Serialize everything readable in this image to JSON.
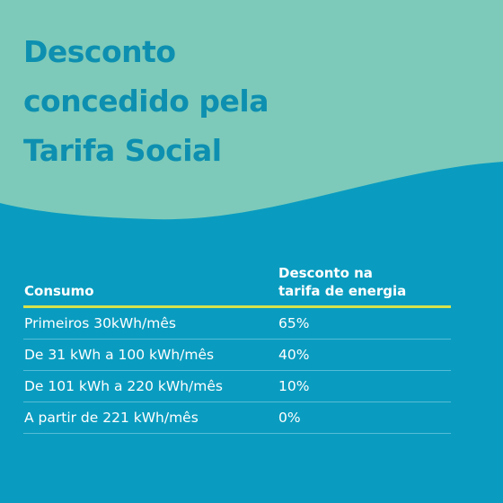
{
  "colors": {
    "top_background": "#7dcaba",
    "bottom_background": "#0a9cc0",
    "title_text": "#0d8fb0",
    "header_rule": "#d7e24b",
    "row_divider": "#55bcd6",
    "table_text": "#ffffff"
  },
  "title": {
    "line1": "Desconto",
    "line2": "concedido pela",
    "line3": "Tarifa Social"
  },
  "table": {
    "headers": {
      "consumo": "Consumo",
      "desconto_line1": "Desconto na",
      "desconto_line2": "tarifa de energia"
    },
    "rows": [
      {
        "consumo": "Primeiros 30kWh/mês",
        "desconto": "65%"
      },
      {
        "consumo": "De 31 kWh a 100 kWh/mês",
        "desconto": "40%"
      },
      {
        "consumo": "De 101 kWh a 220 kWh/mês",
        "desconto": "10%"
      },
      {
        "consumo": "A partir de 221 kWh/mês",
        "desconto": "0%"
      }
    ]
  }
}
